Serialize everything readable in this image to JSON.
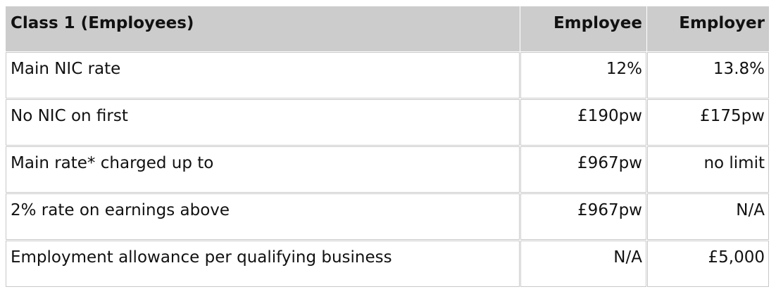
{
  "table": {
    "headers": [
      "Class 1 (Employees)",
      "Employee",
      "Employer"
    ],
    "rows": [
      [
        "Main NIC rate",
        "12%",
        "13.8%"
      ],
      [
        "No NIC on first",
        "£190pw",
        "£175pw"
      ],
      [
        "Main rate* charged up to",
        "£967pw",
        "no limit"
      ],
      [
        "2% rate on earnings above",
        "£967pw",
        "N/A"
      ],
      [
        "Employment allowance per qualifying business",
        "N/A",
        "£5,000"
      ]
    ]
  },
  "colors": {
    "header_bg": "#cccccc",
    "border": "#c8c8c8"
  }
}
